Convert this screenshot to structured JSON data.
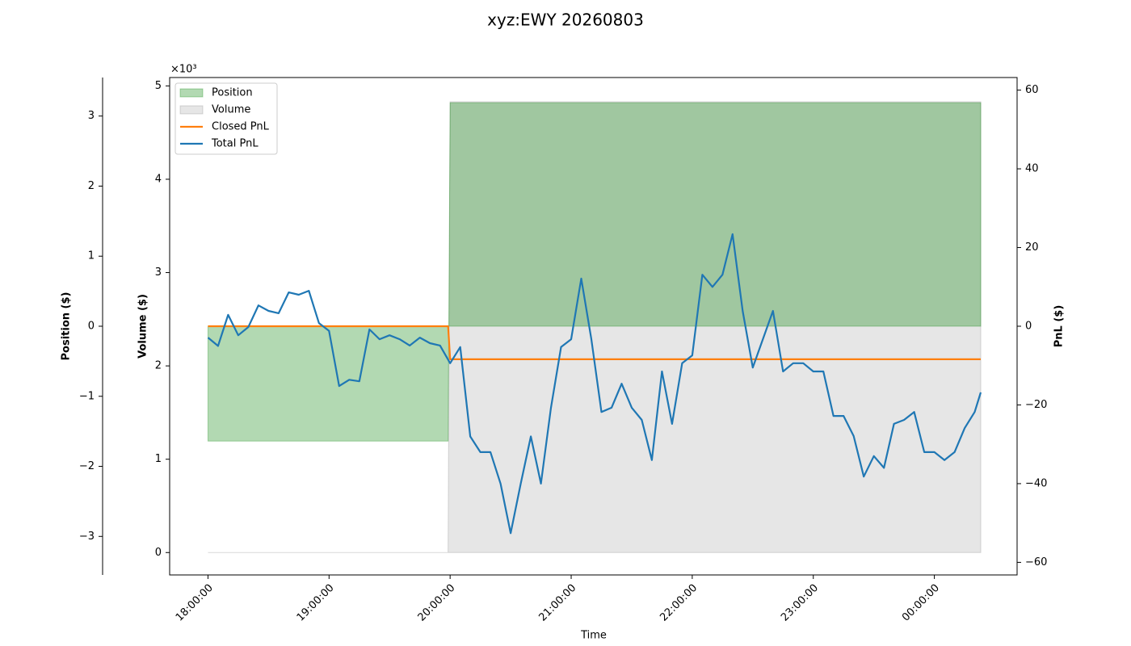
{
  "chart_data": {
    "type": "line",
    "title": "xyz:EWY 20260803",
    "xlabel": "Time",
    "xlim": [
      "17:41:00",
      "00:41:00"
    ],
    "xticks": [
      "18:00:00",
      "19:00:00",
      "20:00:00",
      "21:00:00",
      "22:00:00",
      "23:00:00",
      "00:00:00"
    ],
    "axes": {
      "position": {
        "label": "Position ($)",
        "color": "#008000",
        "offset_label": "×10³",
        "lim": [
          -3.55,
          3.55
        ],
        "ticks": [
          {
            "value": -3,
            "label": "−3"
          },
          {
            "value": -2,
            "label": "−2"
          },
          {
            "value": -1,
            "label": "−1"
          },
          0,
          1,
          2,
          3
        ]
      },
      "volume": {
        "label": "Volume ($)",
        "color": "#808080",
        "lim": [
          -0.24,
          5.09
        ],
        "ticks": [
          0,
          1,
          2,
          3,
          4,
          5
        ]
      },
      "y2": {
        "label": "PnL ($)",
        "color": "#000000",
        "lim": [
          -63.2,
          63.2
        ],
        "ticks": [
          {
            "value": -60,
            "label": "−60"
          },
          {
            "value": -40,
            "label": "−40"
          },
          {
            "value": -20,
            "label": "−20"
          },
          0,
          20,
          40,
          60
        ]
      }
    },
    "legend": "upper left",
    "series": [
      {
        "name": "Position",
        "axis": "position",
        "kind": "area",
        "color": "#008000",
        "x": [
          "18:00",
          "19:59",
          "20:00",
          "00:23"
        ],
        "values": [
          -1.64,
          -1.64,
          3.19,
          3.19
        ]
      },
      {
        "name": "Volume",
        "axis": "volume",
        "kind": "area",
        "color": "#808080",
        "x": [
          "18:00",
          "19:59",
          "20:00",
          "00:23"
        ],
        "values": [
          0,
          0,
          4.83,
          4.83
        ]
      },
      {
        "name": "Closed PnL",
        "axis": "y2",
        "kind": "line",
        "color": "#ff7f0e",
        "x": [
          "18:00",
          "19:59",
          "20:00",
          "00:23"
        ],
        "values": [
          0,
          0,
          -8.4,
          -8.4
        ]
      },
      {
        "name": "Total PnL",
        "axis": "y2",
        "kind": "line",
        "color": "#1f77b4",
        "x": [
          "18:00",
          "18:05",
          "18:10",
          "18:15",
          "18:20",
          "18:25",
          "18:30",
          "18:35",
          "18:40",
          "18:45",
          "18:50",
          "18:55",
          "19:00",
          "19:05",
          "19:10",
          "19:15",
          "19:20",
          "19:25",
          "19:30",
          "19:35",
          "19:40",
          "19:45",
          "19:50",
          "19:55",
          "20:00",
          "20:05",
          "20:10",
          "20:15",
          "20:20",
          "20:25",
          "20:30",
          "20:35",
          "20:40",
          "20:45",
          "20:50",
          "20:55",
          "21:00",
          "21:05",
          "21:10",
          "21:15",
          "21:20",
          "21:25",
          "21:30",
          "21:35",
          "21:40",
          "21:45",
          "21:50",
          "21:55",
          "22:00",
          "22:05",
          "22:10",
          "22:15",
          "22:20",
          "22:25",
          "22:30",
          "22:35",
          "22:40",
          "22:45",
          "22:50",
          "22:55",
          "23:00",
          "23:05",
          "23:10",
          "23:15",
          "23:20",
          "23:25",
          "23:30",
          "23:35",
          "23:40",
          "23:45",
          "23:50",
          "23:55",
          "00:00",
          "00:05",
          "00:10",
          "00:15",
          "00:20",
          "00:23"
        ],
        "values": [
          -2.9,
          -5,
          2.9,
          -2.3,
          -0.2,
          5.3,
          3.9,
          3.3,
          8.6,
          8,
          9,
          0.8,
          -1.2,
          -15.2,
          -13.6,
          -14,
          -0.8,
          -3.3,
          -2.3,
          -3.3,
          -4.9,
          -2.9,
          -4.3,
          -4.9,
          -9.4,
          -5.3,
          -28,
          -32,
          -32,
          -40,
          -52.6,
          -40,
          -28,
          -40,
          -20.7,
          -5.3,
          -3.3,
          12.1,
          -3.3,
          -21.8,
          -20.7,
          -14.6,
          -20.7,
          -23.8,
          -34,
          -11.5,
          -24.8,
          -9.4,
          -7.4,
          13.1,
          10,
          13.1,
          23.4,
          3.9,
          -10.5,
          -3.3,
          3.9,
          -11.5,
          -9.4,
          -9.4,
          -11.5,
          -11.5,
          -22.8,
          -22.8,
          -27.9,
          -38.2,
          -33,
          -36,
          -24.8,
          -23.8,
          -21.8,
          -32,
          -32,
          -34,
          -32,
          -25.9,
          -21.8,
          -16.8
        ]
      }
    ]
  }
}
